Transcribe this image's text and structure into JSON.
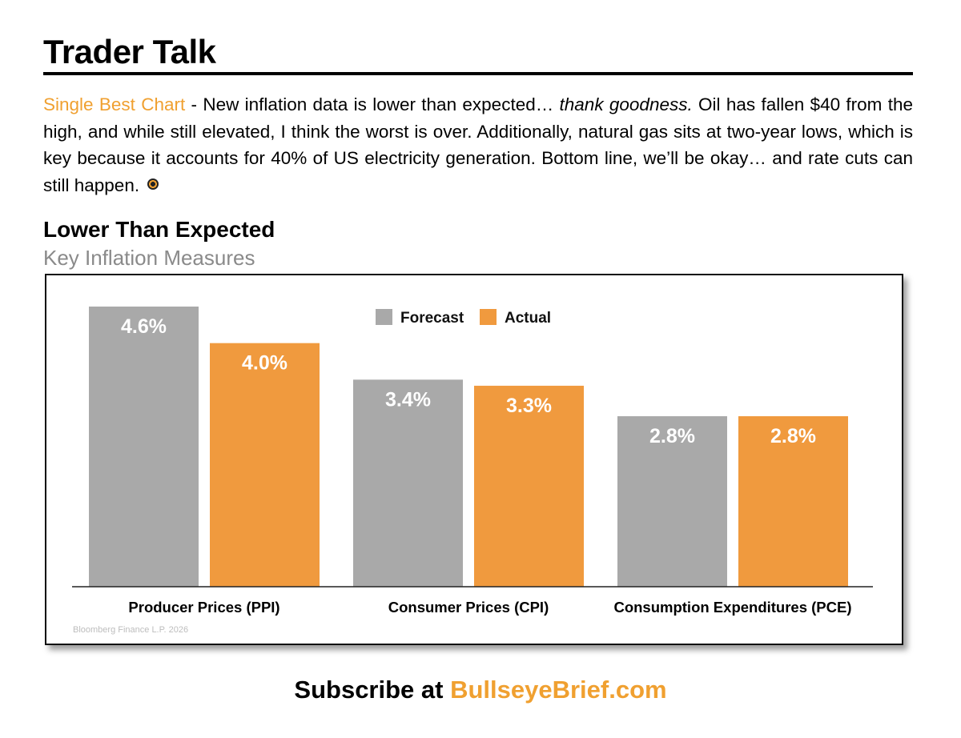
{
  "header": {
    "title": "Trader Talk"
  },
  "intro": {
    "lead": "Single Best Chart",
    "text_a": " - New inflation data is lower than expected… ",
    "emphasis": "thank goodness.",
    "text_b": " Oil has fallen $40 from the high, and while still elevated, I think the worst is over. Additionally, natural gas sits at two-year lows, which is key because it accounts for 40% of US electricity generation. Bottom line, we’ll be okay… and rate cuts can still happen.",
    "icon": "bullseye-icon"
  },
  "chart_data": {
    "type": "bar",
    "title": "Lower Than Expected",
    "subtitle": "Key Inflation Measures",
    "categories": [
      "Producer Prices (PPI)",
      "Consumer Prices (CPI)",
      "Consumption Expenditures (PCE)"
    ],
    "series": [
      {
        "name": "Forecast",
        "values": [
          4.6,
          3.4,
          2.8
        ],
        "labels": [
          "4.6%",
          "3.4%",
          "2.8%"
        ],
        "color": "#a9a9a9"
      },
      {
        "name": "Actual",
        "values": [
          4.0,
          3.3,
          2.8
        ],
        "labels": [
          "4.0%",
          "3.3%",
          "2.8%"
        ],
        "color": "#f09a3e"
      }
    ],
    "ylim": [
      0,
      4.6
    ],
    "legend": "top-center",
    "grid": false,
    "source": "Bloomberg Finance L.P. 2026"
  },
  "footer": {
    "prefix": "Subscribe at ",
    "brand": "BullseyeBrief.com"
  }
}
